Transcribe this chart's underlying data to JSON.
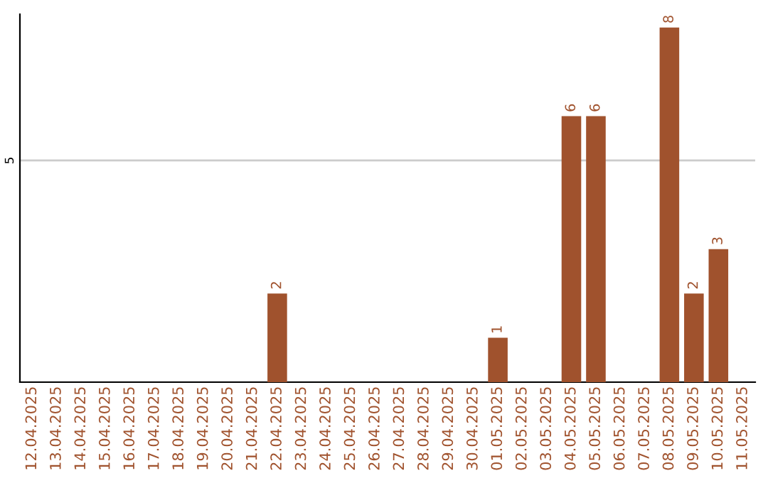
{
  "chart_data": {
    "type": "bar",
    "categories": [
      "12.04.2025",
      "13.04.2025",
      "14.04.2025",
      "15.04.2025",
      "16.04.2025",
      "17.04.2025",
      "18.04.2025",
      "19.04.2025",
      "20.04.2025",
      "21.04.2025",
      "22.04.2025",
      "23.04.2025",
      "24.04.2025",
      "25.04.2025",
      "26.04.2025",
      "27.04.2025",
      "28.04.2025",
      "29.04.2025",
      "30.04.2025",
      "01.05.2025",
      "02.05.2025",
      "03.05.2025",
      "04.05.2025",
      "05.05.2025",
      "06.05.2025",
      "07.05.2025",
      "08.05.2025",
      "09.05.2025",
      "10.05.2025",
      "11.05.2025"
    ],
    "values": [
      0,
      0,
      0,
      0,
      0,
      0,
      0,
      0,
      0,
      0,
      2,
      0,
      0,
      0,
      0,
      0,
      0,
      0,
      0,
      1,
      0,
      0,
      6,
      6,
      0,
      0,
      8,
      2,
      3,
      0
    ],
    "value_labels": [
      null,
      null,
      null,
      null,
      null,
      null,
      null,
      null,
      null,
      null,
      "2",
      null,
      null,
      null,
      null,
      null,
      null,
      null,
      null,
      "1",
      null,
      null,
      "6",
      "6",
      null,
      null,
      "8",
      "2",
      "3",
      null
    ],
    "color": "#a0522d",
    "ylim": [
      0,
      8.3
    ],
    "yticks": [
      5
    ],
    "grid": "y"
  }
}
